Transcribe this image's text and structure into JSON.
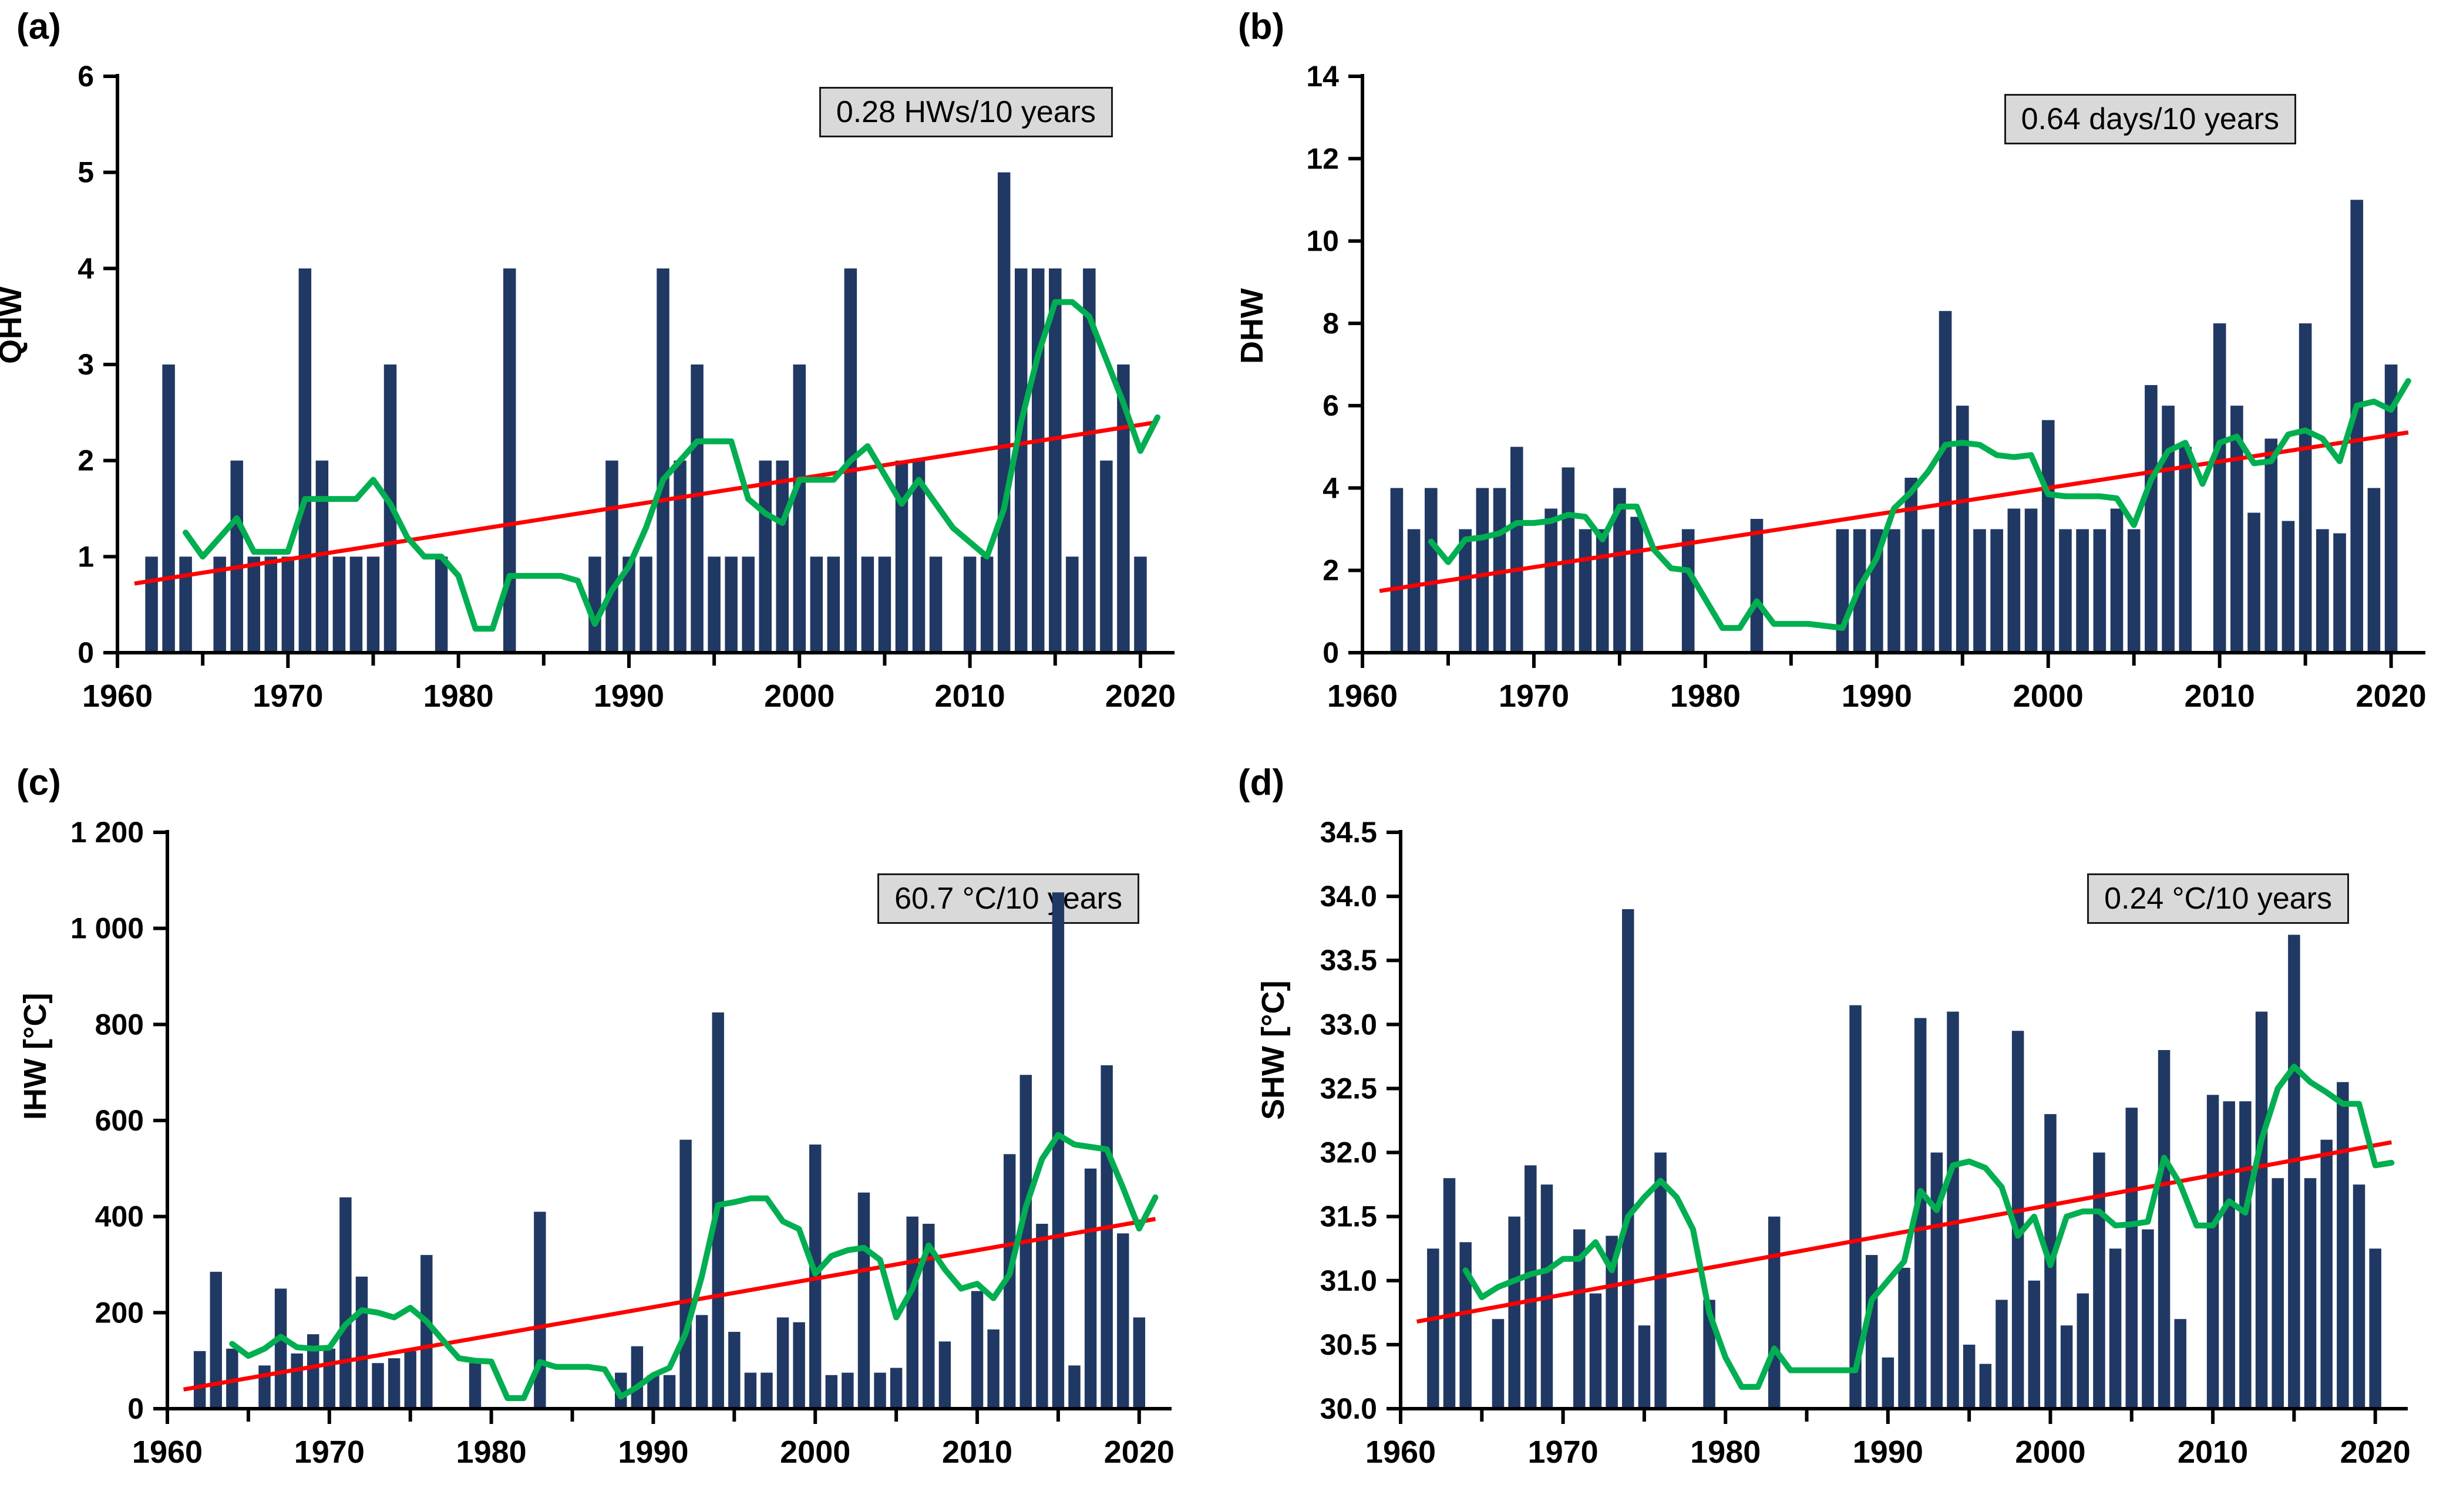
{
  "figure": {
    "colors": {
      "bar": "#1f3864",
      "smooth_line": "#00b050",
      "trend_line": "#ff0000",
      "axis": "#000000",
      "annotation_bg": "#d9d9d9",
      "annotation_border": "#1a1a1a"
    },
    "xtick_labels": [
      "1960",
      "1970",
      "1980",
      "1990",
      "2000",
      "2010",
      "2020"
    ],
    "xtick_years_major": [
      1960,
      1970,
      1980,
      1990,
      2000,
      2010,
      2020
    ],
    "xtick_years_minor": [
      1965,
      1975,
      1985,
      1995,
      2005,
      2015
    ]
  },
  "chart_data": [
    {
      "type": "bar",
      "title": "(a)",
      "ylabel": "QHW",
      "annotation": "0.28 HWs/10 years",
      "ylim": [
        0,
        6
      ],
      "ybase": 0,
      "yticks": [
        0,
        1,
        2,
        3,
        4,
        5,
        6
      ],
      "ytick_labels": [
        "0",
        "1",
        "2",
        "3",
        "4",
        "5",
        "6"
      ],
      "x_start": 1962,
      "x": [
        1962,
        1963,
        1964,
        1965,
        1966,
        1967,
        1968,
        1969,
        1970,
        1971,
        1972,
        1973,
        1974,
        1975,
        1976,
        1977,
        1978,
        1979,
        1980,
        1981,
        1982,
        1983,
        1984,
        1985,
        1986,
        1987,
        1988,
        1989,
        1990,
        1991,
        1992,
        1993,
        1994,
        1995,
        1996,
        1997,
        1998,
        1999,
        2000,
        2001,
        2002,
        2003,
        2004,
        2005,
        2006,
        2007,
        2008,
        2009,
        2010,
        2011,
        2012,
        2013,
        2014,
        2015,
        2016,
        2017,
        2018,
        2019,
        2020
      ],
      "values": [
        1,
        3,
        1,
        0,
        1,
        2,
        1,
        1,
        1,
        4,
        2,
        1,
        1,
        1,
        3,
        0,
        0,
        1,
        0,
        0,
        0,
        4,
        0,
        0,
        0,
        0,
        1,
        2,
        1,
        1,
        4,
        2,
        3,
        1,
        1,
        1,
        2,
        2,
        3,
        1,
        1,
        4,
        1,
        1,
        2,
        2,
        1,
        0,
        1,
        1,
        5,
        4,
        4,
        4,
        1,
        4,
        2,
        3,
        1
      ],
      "smooth_x_start": 1964,
      "smooth": [
        1.25,
        1.0,
        1.2,
        1.4,
        1.05,
        1.05,
        1.05,
        1.6,
        1.6,
        1.6,
        1.6,
        1.8,
        1.55,
        1.2,
        1.0,
        1.0,
        0.8,
        0.25,
        0.25,
        0.8,
        0.8,
        0.8,
        0.8,
        0.75,
        0.3,
        0.65,
        0.9,
        1.3,
        1.8,
        2.0,
        2.2,
        2.2,
        2.2,
        1.6,
        1.45,
        1.35,
        1.8,
        1.8,
        1.8,
        2.0,
        2.15,
        1.85,
        1.55,
        1.8,
        1.55,
        1.3,
        1.15,
        1.0,
        1.5,
        2.4,
        3.1,
        3.65,
        3.65,
        3.5,
        3.05,
        2.6,
        2.1,
        2.45
      ],
      "trend": {
        "x1": 1961,
        "v1": 0.72,
        "x2": 2021,
        "v2": 2.4
      },
      "legend_position": "top-right-annotation",
      "grid": "off"
    },
    {
      "type": "bar",
      "title": "(b)",
      "ylabel": "DHW",
      "annotation": "0.64 days/10 years",
      "ylim": [
        0,
        14
      ],
      "ybase": 0,
      "yticks": [
        0,
        2,
        4,
        6,
        8,
        10,
        12,
        14
      ],
      "ytick_labels": [
        "0",
        "2",
        "4",
        "6",
        "8",
        "10",
        "12",
        "14"
      ],
      "x_start": 1962,
      "x": [
        1962,
        1963,
        1964,
        1965,
        1966,
        1967,
        1968,
        1969,
        1970,
        1971,
        1972,
        1973,
        1974,
        1975,
        1976,
        1977,
        1978,
        1979,
        1980,
        1981,
        1982,
        1983,
        1984,
        1985,
        1986,
        1987,
        1988,
        1989,
        1990,
        1991,
        1992,
        1993,
        1994,
        1995,
        1996,
        1997,
        1998,
        1999,
        2000,
        2001,
        2002,
        2003,
        2004,
        2005,
        2006,
        2007,
        2008,
        2009,
        2010,
        2011,
        2012,
        2013,
        2014,
        2015,
        2016,
        2017,
        2018,
        2019,
        2020
      ],
      "values": [
        4,
        3,
        4,
        0,
        3,
        4,
        4,
        5,
        0,
        3.5,
        4.5,
        3,
        3,
        4,
        3.3,
        0,
        0,
        3,
        0,
        0,
        0,
        3.25,
        0,
        0,
        0,
        0,
        3,
        3,
        3,
        3,
        4.25,
        3,
        8.3,
        6,
        3,
        3,
        3.5,
        3.5,
        5.65,
        3,
        3,
        3,
        3.5,
        3,
        6.5,
        6,
        5,
        0,
        8,
        6,
        3.4,
        5.2,
        3.2,
        8,
        3,
        2.9,
        11,
        4,
        7
      ],
      "smooth_x_start": 1964,
      "smooth": [
        2.7,
        2.2,
        2.75,
        2.8,
        2.9,
        3.15,
        3.15,
        3.2,
        3.35,
        3.3,
        2.75,
        3.55,
        3.55,
        2.5,
        2.05,
        2.0,
        1.3,
        0.6,
        0.6,
        1.25,
        0.7,
        0.7,
        0.7,
        0.65,
        0.6,
        1.6,
        2.3,
        3.5,
        3.9,
        4.4,
        5.05,
        5.1,
        5.05,
        4.8,
        4.75,
        4.8,
        3.85,
        3.8,
        3.8,
        3.8,
        3.75,
        3.1,
        4.2,
        4.9,
        5.1,
        4.1,
        5.1,
        5.25,
        4.6,
        4.65,
        5.3,
        5.4,
        5.2,
        4.65,
        6.0,
        6.1,
        5.9,
        6.6
      ],
      "trend": {
        "x1": 1961,
        "v1": 1.5,
        "x2": 2021,
        "v2": 5.35
      },
      "legend_position": "top-right-annotation",
      "grid": "off"
    },
    {
      "type": "bar",
      "title": "(c)",
      "ylabel": "IHW [°C]",
      "annotation": "60.7 °C/10 years",
      "ylim": [
        0,
        1200
      ],
      "ybase": 0,
      "yticks": [
        0,
        200,
        400,
        600,
        800,
        1000,
        1200
      ],
      "ytick_labels": [
        "0",
        "200",
        "400",
        "600",
        "800",
        "1 000",
        "1 200"
      ],
      "x_start": 1962,
      "x": [
        1962,
        1963,
        1964,
        1965,
        1966,
        1967,
        1968,
        1969,
        1970,
        1971,
        1972,
        1973,
        1974,
        1975,
        1976,
        1977,
        1978,
        1979,
        1980,
        1981,
        1982,
        1983,
        1984,
        1985,
        1986,
        1987,
        1988,
        1989,
        1990,
        1991,
        1992,
        1993,
        1994,
        1995,
        1996,
        1997,
        1998,
        1999,
        2000,
        2001,
        2002,
        2003,
        2004,
        2005,
        2006,
        2007,
        2008,
        2009,
        2010,
        2011,
        2012,
        2013,
        2014,
        2015,
        2016,
        2017,
        2018,
        2019,
        2020
      ],
      "values": [
        120,
        285,
        125,
        0,
        90,
        250,
        115,
        155,
        125,
        440,
        275,
        95,
        105,
        120,
        320,
        0,
        0,
        95,
        0,
        0,
        0,
        410,
        0,
        0,
        0,
        0,
        75,
        130,
        70,
        70,
        560,
        195,
        825,
        160,
        75,
        75,
        190,
        180,
        550,
        70,
        75,
        450,
        75,
        85,
        400,
        385,
        140,
        0,
        245,
        165,
        530,
        695,
        385,
        1075,
        90,
        500,
        715,
        365,
        190
      ],
      "smooth_x_start": 1964,
      "smooth": [
        135,
        110,
        125,
        150,
        128,
        125,
        127,
        175,
        205,
        200,
        190,
        210,
        182,
        143,
        105,
        100,
        98,
        22,
        22,
        97,
        87,
        87,
        87,
        82,
        25,
        45,
        70,
        85,
        157,
        276,
        424,
        430,
        438,
        438,
        390,
        374,
        281,
        318,
        330,
        335,
        310,
        190,
        250,
        340,
        290,
        250,
        260,
        230,
        280,
        420,
        520,
        570,
        550,
        545,
        540,
        460,
        375,
        440
      ],
      "trend": {
        "x1": 1961,
        "v1": 40,
        "x2": 2021,
        "v2": 395
      },
      "legend_position": "top-right-annotation",
      "grid": "off"
    },
    {
      "type": "bar",
      "title": "(d)",
      "ylabel": "SHW [°C]",
      "annotation": "0.24 °C/10 years",
      "ylim": [
        30.0,
        34.5
      ],
      "ybase": 30.0,
      "yticks": [
        30.0,
        30.5,
        31.0,
        31.5,
        32.0,
        32.5,
        33.0,
        33.5,
        34.0,
        34.5
      ],
      "ytick_labels": [
        "30.0",
        "30.5",
        "31.0",
        "31.5",
        "32.0",
        "32.5",
        "33.0",
        "33.5",
        "34.0",
        "34.5"
      ],
      "x_start": 1962,
      "x": [
        1962,
        1963,
        1964,
        1965,
        1966,
        1967,
        1968,
        1969,
        1970,
        1971,
        1972,
        1973,
        1974,
        1975,
        1976,
        1977,
        1978,
        1979,
        1980,
        1981,
        1982,
        1983,
        1984,
        1985,
        1986,
        1987,
        1988,
        1989,
        1990,
        1991,
        1992,
        1993,
        1994,
        1995,
        1996,
        1997,
        1998,
        1999,
        2000,
        2001,
        2002,
        2003,
        2004,
        2005,
        2006,
        2007,
        2008,
        2009,
        2010,
        2011,
        2012,
        2013,
        2014,
        2015,
        2016,
        2017,
        2018,
        2019,
        2020
      ],
      "values": [
        31.25,
        31.8,
        31.3,
        0,
        30.7,
        31.5,
        31.9,
        31.75,
        0,
        31.4,
        30.9,
        31.35,
        33.9,
        30.65,
        32.0,
        0,
        0,
        30.85,
        0,
        0,
        0,
        31.5,
        0,
        0,
        0,
        0,
        33.15,
        31.2,
        30.4,
        31.1,
        33.05,
        32.0,
        33.1,
        30.5,
        30.35,
        30.85,
        32.95,
        31.0,
        32.3,
        30.65,
        30.9,
        32.0,
        31.25,
        32.35,
        31.4,
        32.8,
        30.7,
        0,
        32.45,
        32.4,
        32.4,
        33.1,
        31.8,
        33.7,
        31.8,
        32.1,
        32.55,
        31.75,
        31.25
      ],
      "smooth_x_start": 1964,
      "smooth": [
        31.08,
        30.87,
        30.95,
        31.0,
        31.05,
        31.08,
        31.17,
        31.17,
        31.3,
        31.08,
        31.5,
        31.65,
        31.78,
        31.65,
        31.4,
        30.75,
        30.4,
        30.17,
        30.17,
        30.47,
        30.3,
        30.3,
        30.3,
        30.3,
        30.3,
        30.85,
        31.0,
        31.15,
        31.7,
        31.55,
        31.9,
        31.93,
        31.88,
        31.73,
        31.35,
        31.5,
        31.12,
        31.5,
        31.54,
        31.54,
        31.43,
        31.44,
        31.46,
        31.96,
        31.75,
        31.43,
        31.43,
        31.62,
        31.53,
        32.1,
        32.5,
        32.67,
        32.55,
        32.47,
        32.38,
        32.38,
        31.9,
        31.92
      ],
      "trend": {
        "x1": 1961,
        "v1": 30.68,
        "x2": 2021,
        "v2": 32.08
      },
      "legend_position": "top-right-annotation",
      "grid": "off"
    }
  ]
}
